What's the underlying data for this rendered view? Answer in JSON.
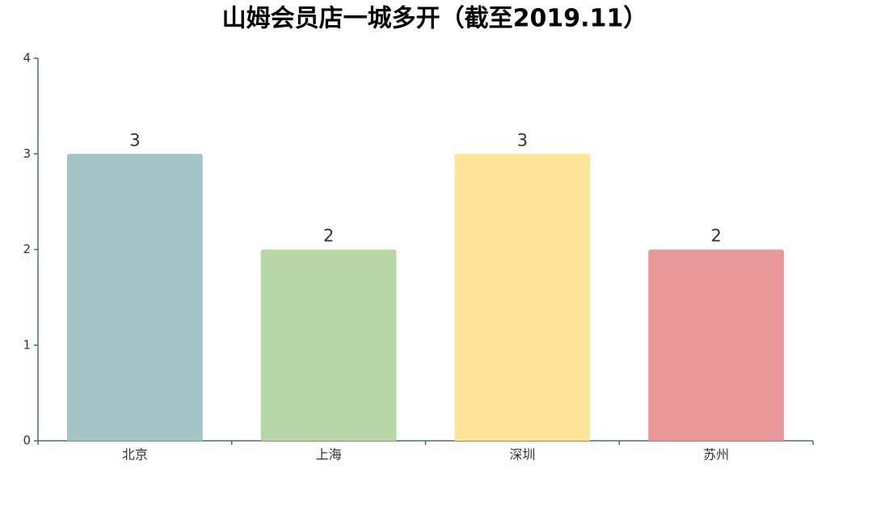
{
  "chart_data": {
    "type": "bar",
    "title": "山姆会员店一城多开（截至2019.11）",
    "categories": [
      "北京",
      "上海",
      "深圳",
      "苏州"
    ],
    "values": [
      3,
      2,
      3,
      2
    ],
    "colors": [
      "#a3c3c7",
      "#b7d7a8",
      "#fde499",
      "#e89899"
    ],
    "ylim": [
      0,
      4
    ],
    "yticks": [
      0,
      1,
      2,
      3,
      4
    ]
  }
}
